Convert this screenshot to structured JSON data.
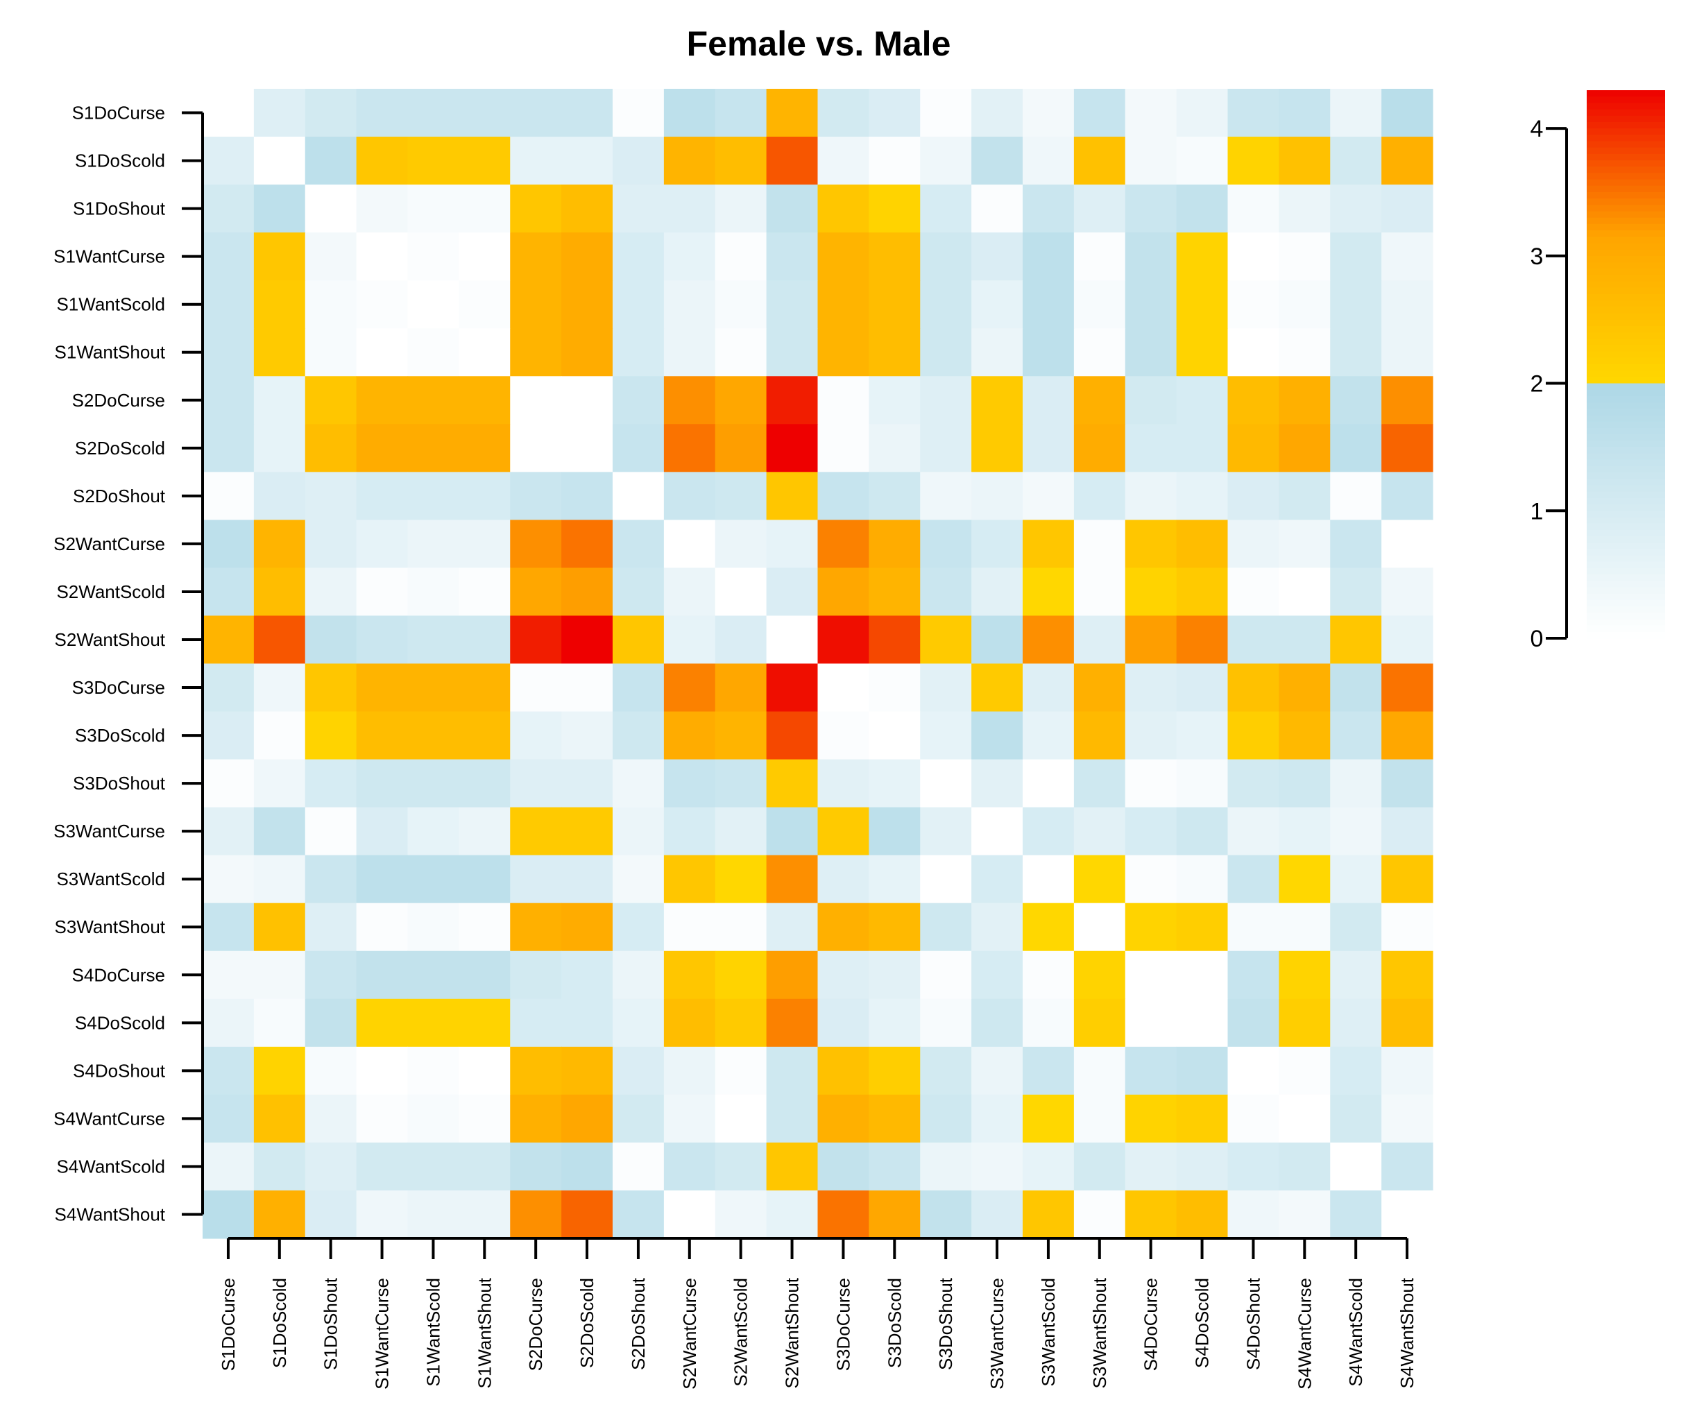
{
  "chart_data": {
    "type": "heatmap",
    "title": "Female vs. Male",
    "row_labels": [
      "S1DoCurse",
      "S1DoScold",
      "S1DoShout",
      "S1WantCurse",
      "S1WantScold",
      "S1WantShout",
      "S2DoCurse",
      "S2DoScold",
      "S2DoShout",
      "S2WantCurse",
      "S2WantScold",
      "S2WantShout",
      "S3DoCurse",
      "S3DoScold",
      "S3DoShout",
      "S3WantCurse",
      "S3WantScold",
      "S3WantShout",
      "S4DoCurse",
      "S4DoScold",
      "S4DoShout",
      "S4WantCurse",
      "S4WantScold",
      "S4WantShout"
    ],
    "col_labels": [
      "S1DoCurse",
      "S1DoScold",
      "S1DoShout",
      "S1WantCurse",
      "S1WantScold",
      "S1WantShout",
      "S2DoCurse",
      "S2DoScold",
      "S2DoShout",
      "S2WantCurse",
      "S2WantScold",
      "S2WantShout",
      "S3DoCurse",
      "S3DoScold",
      "S3DoShout",
      "S3WantCurse",
      "S3WantScold",
      "S3WantShout",
      "S4DoCurse",
      "S4DoScold",
      "S4DoShout",
      "S4WantCurse",
      "S4WantScold",
      "S4WantShout"
    ],
    "values": [
      [
        0,
        0.8,
        1.1,
        1.3,
        1.3,
        1.3,
        1.3,
        1.3,
        0.1,
        1.6,
        1.4,
        2.8,
        1.1,
        0.9,
        0.1,
        0.7,
        0.3,
        1.4,
        0.3,
        0.5,
        1.3,
        1.4,
        0.5,
        1.7
      ],
      [
        0.8,
        0,
        1.6,
        2.4,
        2.3,
        2.3,
        0.6,
        0.6,
        0.9,
        2.8,
        2.6,
        3.7,
        0.4,
        0.1,
        0.4,
        1.5,
        0.4,
        2.5,
        0.3,
        0.2,
        2.1,
        2.5,
        1.1,
        2.9
      ],
      [
        1.1,
        1.6,
        0,
        0.3,
        0.2,
        0.2,
        2.4,
        2.6,
        0.8,
        0.8,
        0.5,
        1.5,
        2.4,
        2.1,
        1.0,
        0.1,
        1.3,
        0.8,
        1.3,
        1.5,
        0.2,
        0.5,
        0.8,
        0.9
      ],
      [
        1.3,
        2.4,
        0.3,
        0,
        0.1,
        0,
        2.8,
        3.0,
        1.0,
        0.6,
        0.1,
        1.3,
        2.8,
        2.6,
        1.2,
        0.9,
        1.6,
        0.1,
        1.5,
        2.1,
        0,
        0.1,
        1.1,
        0.4
      ],
      [
        1.3,
        2.3,
        0.2,
        0.1,
        0,
        0.1,
        2.8,
        3.0,
        1.0,
        0.5,
        0.2,
        1.2,
        2.8,
        2.6,
        1.2,
        0.6,
        1.6,
        0.2,
        1.5,
        2.1,
        0.1,
        0.2,
        1.1,
        0.5
      ],
      [
        1.3,
        2.3,
        0.2,
        0,
        0.1,
        0,
        2.8,
        3.0,
        1.0,
        0.5,
        0.1,
        1.2,
        2.8,
        2.6,
        1.2,
        0.5,
        1.6,
        0.1,
        1.5,
        2.1,
        0,
        0.1,
        1.1,
        0.5
      ],
      [
        1.3,
        0.6,
        2.4,
        2.8,
        2.8,
        2.8,
        0,
        0,
        1.3,
        3.3,
        3.1,
        4.1,
        0.1,
        0.6,
        0.8,
        2.3,
        0.9,
        2.9,
        1.1,
        1.0,
        2.6,
        2.9,
        1.5,
        3.3
      ],
      [
        1.3,
        0.6,
        2.6,
        3.0,
        3.0,
        3.0,
        0,
        0,
        1.4,
        3.5,
        3.2,
        4.3,
        0.1,
        0.5,
        0.8,
        2.3,
        0.9,
        3.0,
        1.0,
        1.0,
        2.7,
        3.1,
        1.6,
        3.6
      ],
      [
        0.1,
        0.9,
        0.8,
        1.0,
        1.0,
        1.0,
        1.3,
        1.4,
        0,
        1.3,
        1.2,
        2.4,
        1.4,
        1.2,
        0.4,
        0.5,
        0.3,
        1.0,
        0.5,
        0.6,
        0.9,
        1.1,
        0.1,
        1.4
      ],
      [
        1.6,
        2.8,
        0.8,
        0.6,
        0.5,
        0.5,
        3.3,
        3.5,
        1.3,
        0,
        0.5,
        0.6,
        3.4,
        3.0,
        1.4,
        1.0,
        2.4,
        0.1,
        2.4,
        2.6,
        0.5,
        0.4,
        1.3,
        0
      ],
      [
        1.4,
        2.6,
        0.5,
        0.1,
        0.2,
        0.1,
        3.1,
        3.2,
        1.2,
        0.5,
        0,
        0.9,
        3.1,
        2.8,
        1.3,
        0.7,
        2.0,
        0.1,
        2.1,
        2.3,
        0.1,
        0,
        1.1,
        0.4
      ],
      [
        2.8,
        3.7,
        1.5,
        1.3,
        1.2,
        1.2,
        4.1,
        4.3,
        2.4,
        0.6,
        0.9,
        0,
        4.2,
        3.8,
        2.3,
        1.6,
        3.3,
        0.8,
        3.2,
        3.4,
        1.2,
        1.2,
        2.4,
        0.6
      ],
      [
        1.1,
        0.4,
        2.4,
        2.8,
        2.8,
        2.8,
        0.1,
        0.1,
        1.4,
        3.4,
        3.1,
        4.2,
        0,
        0.1,
        0.7,
        2.3,
        0.8,
        2.9,
        0.8,
        0.9,
        2.5,
        2.9,
        1.5,
        3.5
      ],
      [
        0.9,
        0.1,
        2.1,
        2.6,
        2.6,
        2.6,
        0.6,
        0.5,
        1.2,
        3.0,
        2.8,
        3.8,
        0.1,
        0,
        0.6,
        1.6,
        0.6,
        2.7,
        0.7,
        0.6,
        2.2,
        2.7,
        1.3,
        3.1
      ],
      [
        0.1,
        0.4,
        1.0,
        1.2,
        1.2,
        1.2,
        0.8,
        0.8,
        0.4,
        1.4,
        1.3,
        2.3,
        0.7,
        0.6,
        0,
        0.7,
        0,
        1.2,
        0.1,
        0.2,
        1.1,
        1.2,
        0.5,
        1.5
      ],
      [
        0.7,
        1.5,
        0.1,
        0.9,
        0.6,
        0.5,
        2.3,
        2.3,
        0.5,
        1.0,
        0.7,
        1.6,
        2.3,
        1.6,
        0.7,
        0,
        1.0,
        0.7,
        1.0,
        1.2,
        0.5,
        0.6,
        0.4,
        0.9
      ],
      [
        0.3,
        0.4,
        1.3,
        1.6,
        1.6,
        1.6,
        0.9,
        0.9,
        0.3,
        2.4,
        2.0,
        3.3,
        0.8,
        0.6,
        0,
        1.0,
        0,
        2.0,
        0.1,
        0.2,
        1.3,
        2.0,
        0.6,
        2.4
      ],
      [
        1.4,
        2.5,
        0.8,
        0.1,
        0.2,
        0.1,
        2.9,
        3.0,
        1.0,
        0.1,
        0.1,
        0.8,
        2.9,
        2.7,
        1.2,
        0.7,
        2.0,
        0,
        2.1,
        2.2,
        0.2,
        0.2,
        1.1,
        0.1
      ],
      [
        0.3,
        0.3,
        1.3,
        1.5,
        1.5,
        1.5,
        1.1,
        1.0,
        0.5,
        2.4,
        2.1,
        3.2,
        0.8,
        0.7,
        0.1,
        1.0,
        0.1,
        2.1,
        0,
        0,
        1.4,
        2.1,
        0.7,
        2.4
      ],
      [
        0.5,
        0.2,
        1.5,
        2.1,
        2.1,
        2.1,
        1.0,
        1.0,
        0.6,
        2.6,
        2.3,
        3.4,
        0.9,
        0.6,
        0.2,
        1.2,
        0.2,
        2.2,
        0,
        0,
        1.5,
        2.2,
        0.8,
        2.6
      ],
      [
        1.3,
        2.1,
        0.2,
        0,
        0.1,
        0,
        2.6,
        2.7,
        0.9,
        0.5,
        0.1,
        1.2,
        2.5,
        2.2,
        1.1,
        0.5,
        1.3,
        0.2,
        1.4,
        1.5,
        0,
        0.1,
        1.0,
        0.4
      ],
      [
        1.4,
        2.5,
        0.5,
        0.1,
        0.2,
        0.1,
        2.9,
        3.1,
        1.1,
        0.4,
        0,
        1.2,
        2.9,
        2.7,
        1.2,
        0.6,
        2.0,
        0.2,
        2.1,
        2.2,
        0.1,
        0,
        1.1,
        0.3
      ],
      [
        0.5,
        1.1,
        0.8,
        1.1,
        1.1,
        1.1,
        1.5,
        1.6,
        0.1,
        1.3,
        1.1,
        2.4,
        1.5,
        1.3,
        0.5,
        0.4,
        0.6,
        1.1,
        0.7,
        0.8,
        1.0,
        1.1,
        0,
        1.3
      ],
      [
        1.7,
        2.9,
        0.9,
        0.4,
        0.5,
        0.5,
        3.3,
        3.6,
        1.4,
        0,
        0.4,
        0.6,
        3.5,
        3.1,
        1.5,
        0.9,
        2.4,
        0.1,
        2.4,
        2.6,
        0.4,
        0.3,
        1.3,
        0
      ]
    ],
    "color_scale": {
      "min": 0,
      "max": 4.3,
      "break": 2,
      "low_colors": [
        "#ffffff",
        "#add8e6"
      ],
      "high_colors": [
        "#ffd700",
        "#ffa500",
        "#ee0000"
      ],
      "ticks": [
        0,
        1,
        2,
        3,
        4
      ]
    },
    "legend": "right"
  }
}
